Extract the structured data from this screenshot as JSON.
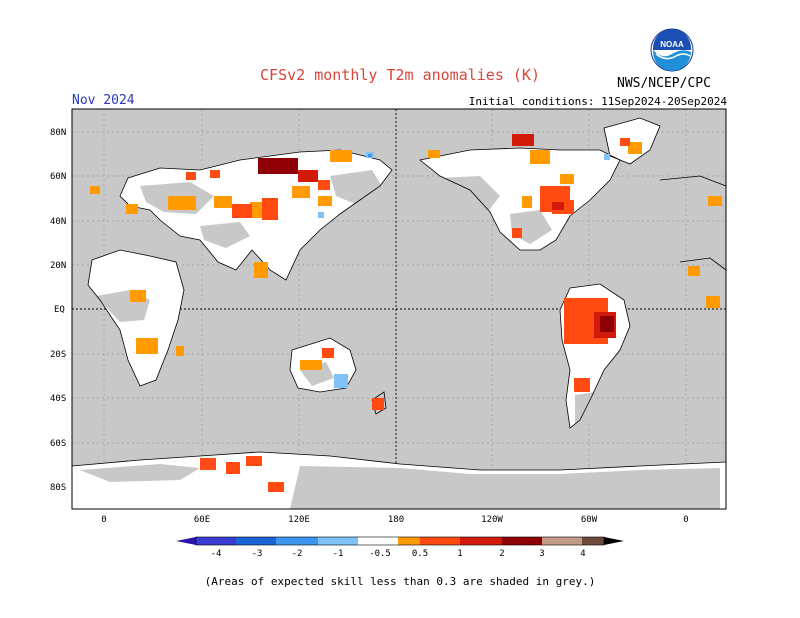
{
  "header": {
    "title": "CFSv2 monthly T2m anomalies (K)",
    "period": "Nov 2024",
    "initial_conditions": "Initial conditions: 11Sep2024-20Sep2024",
    "agency": "NWS/NCEP/CPC",
    "logo_text": "NOAA"
  },
  "map": {
    "lat_labels": [
      "80N",
      "60N",
      "40N",
      "20N",
      "EQ",
      "20S",
      "40S",
      "60S",
      "80S"
    ],
    "lon_labels": [
      "0",
      "60E",
      "120E",
      "180",
      "120W",
      "60W",
      "0"
    ],
    "background_color": "#c8c8c8"
  },
  "legend": {
    "labels": [
      "-4",
      "-3",
      "-2",
      "-1",
      "-0.5",
      "0.5",
      "1",
      "2",
      "3",
      "4"
    ],
    "colors": [
      "#2b12a8",
      "#3a3bd0",
      "#1a64d8",
      "#3c96f0",
      "#7ec2f8",
      "#ffffff",
      "#ff9a00",
      "#ff4a12",
      "#d21a0a",
      "#8e0006",
      "#c39a88",
      "#6e4a3a"
    ]
  },
  "note": "(Areas of expected skill less than 0.3 are shaded in grey.)"
}
